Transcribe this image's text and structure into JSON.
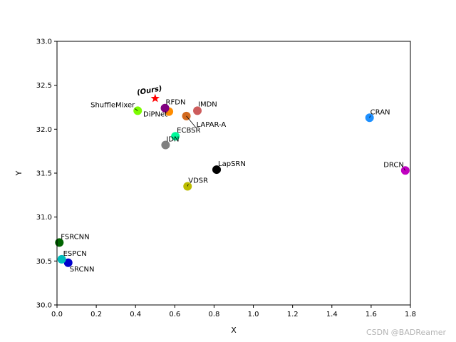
{
  "chart_data": {
    "type": "scatter",
    "title": "",
    "xlabel": "X",
    "ylabel": "Y",
    "xlim": [
      0.0,
      1.8
    ],
    "ylim": [
      30.0,
      33.0
    ],
    "xticks": [
      "0.0",
      "0.2",
      "0.4",
      "0.6",
      "0.8",
      "1.0",
      "1.2",
      "1.4",
      "1.6",
      "1.8"
    ],
    "yticks": [
      "30.0",
      "30.5",
      "31.0",
      "31.5",
      "32.0",
      "32.5",
      "33.0"
    ],
    "points": [
      {
        "name": "SRCNN",
        "x": 0.057,
        "y": 30.48,
        "color": "#0000cd"
      },
      {
        "name": "ESPCN",
        "x": 0.024,
        "y": 30.52,
        "color": "#00bcbc"
      },
      {
        "name": "FSRCNN",
        "x": 0.012,
        "y": 30.71,
        "color": "#006400"
      },
      {
        "name": "VDSR",
        "x": 0.665,
        "y": 31.35,
        "color": "#bcbc00"
      },
      {
        "name": "LapSRN",
        "x": 0.813,
        "y": 31.54,
        "color": "#000000"
      },
      {
        "name": "DRCN",
        "x": 1.774,
        "y": 31.53,
        "color": "#c000c0"
      },
      {
        "name": "CRAN",
        "x": 1.592,
        "y": 32.13,
        "color": "#1e90ff"
      },
      {
        "name": "IDN",
        "x": 0.553,
        "y": 31.82,
        "color": "#808080"
      },
      {
        "name": "ECBSR",
        "x": 0.603,
        "y": 31.92,
        "color": "#00fa9a"
      },
      {
        "name": "IMDN",
        "x": 0.715,
        "y": 32.21,
        "color": "#cd5c5c"
      },
      {
        "name": "LAPAR-A",
        "x": 0.659,
        "y": 32.15,
        "color": "#d2691e"
      },
      {
        "name": "DiPNet",
        "x": 0.57,
        "y": 32.2,
        "color": "#ff8c00"
      },
      {
        "name": "RFDN",
        "x": 0.55,
        "y": 32.24,
        "color": "#800080"
      },
      {
        "name": "ShuffleMixer",
        "x": 0.411,
        "y": 32.21,
        "color": "#7cfc00"
      }
    ],
    "ours": {
      "name": "(Ours)",
      "x": 0.5,
      "y": 32.35,
      "color": "#ff0000",
      "marker": "star"
    }
  },
  "watermark": "CSDN @BADReamer"
}
